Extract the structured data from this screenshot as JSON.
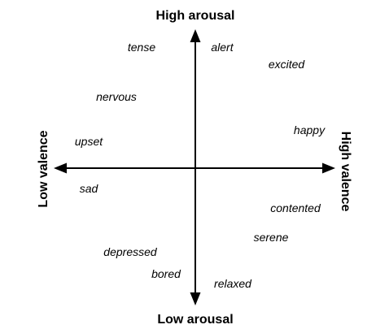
{
  "axes": {
    "top": "High arousal",
    "bottom": "Low arousal",
    "left": "Low valence",
    "right": "High valence"
  },
  "emotions": {
    "tense": "tense",
    "alert": "alert",
    "excited": "excited",
    "nervous": "nervous",
    "happy": "happy",
    "upset": "upset",
    "sad": "sad",
    "contented": "contented",
    "serene": "serene",
    "depressed": "depressed",
    "bored": "bored",
    "relaxed": "relaxed"
  },
  "colors": {
    "ink": "#000000",
    "background": "#ffffff"
  }
}
